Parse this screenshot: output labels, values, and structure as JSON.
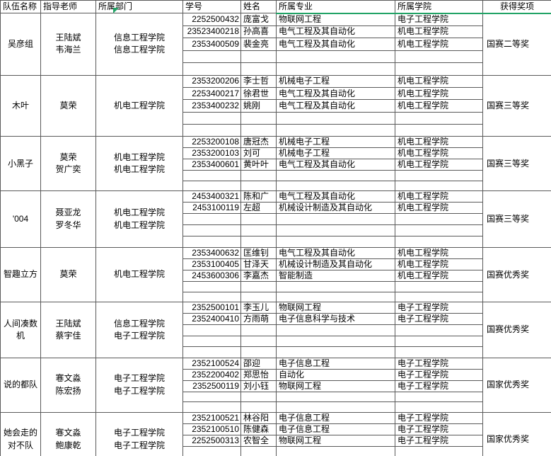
{
  "header": {
    "columns": [
      "队伍名称",
      "指导老师",
      "所属部门",
      "学号",
      "姓名",
      "所属专业",
      "所属学院",
      "获得奖项"
    ]
  },
  "colors": {
    "selection_green": "#21a366",
    "grid_border": "#5a5a5a"
  },
  "teams": [
    {
      "name": "吴彦组",
      "advisors": "王陆斌\n韦海兰",
      "department": "信息工程学院\n信息工程学院",
      "award": "国赛二等奖",
      "students": [
        {
          "id": "2252500432",
          "name": "庞富戈",
          "major": "物联网工程",
          "college": "电子工程学院"
        },
        {
          "id": "23523400218",
          "name": "孙高喜",
          "major": "电气工程及其自动化",
          "college": "机电工程学院"
        },
        {
          "id": "2353400509",
          "name": "裴金亮",
          "major": "电气工程及其自动化",
          "college": "机电工程学院"
        }
      ]
    },
    {
      "name": "木叶",
      "advisors": "莫荣",
      "department": "机电工程学院",
      "award": "国赛三等奖",
      "students": [
        {
          "id": "2353200206",
          "name": "李士哲",
          "major": "机械电子工程",
          "college": "机电工程学院"
        },
        {
          "id": "2253400217",
          "name": "徐君世",
          "major": "电气工程及其自动化",
          "college": "机电工程学院"
        },
        {
          "id": "2353400232",
          "name": "姚刚",
          "major": "电气工程及其自动化",
          "college": "机电工程学院"
        }
      ]
    },
    {
      "name": "小黑子",
      "advisors": "莫荣\n贺广奕",
      "department": "机电工程学院\n机电工程学院",
      "award": "国赛三等奖",
      "students": [
        {
          "id": "2253200108",
          "name": "唐冠杰",
          "major": "机械电子工程",
          "college": "机电工程学院"
        },
        {
          "id": "2353200103",
          "name": "刘可",
          "major": "机械电子工程",
          "college": "机电工程学院"
        },
        {
          "id": "2353400601",
          "name": "黄叶叶",
          "major": "电气工程及其自动化",
          "college": "机电工程学院"
        }
      ]
    },
    {
      "name": "'004",
      "advisors": "聂亚龙\n罗冬华",
      "department": "机电工程学院\n机电工程学院",
      "award": "国赛三等奖",
      "students": [
        {
          "id": "2453400321",
          "name": "陈和广",
          "major": "电气工程及其自动化",
          "college": "机电工程学院"
        },
        {
          "id": "2453100119",
          "name": "左超",
          "major": "机械设计制造及其自动化",
          "college": "机电工程学院"
        }
      ]
    },
    {
      "name": "智趣立方",
      "advisors": "莫荣",
      "department": "机电工程学院",
      "award": "国赛优秀奖",
      "students": [
        {
          "id": "2353400632",
          "name": "匡维钊",
          "major": "电气工程及其自动化",
          "college": "机电工程学院"
        },
        {
          "id": "2353100405",
          "name": "甘泽天",
          "major": "机械设计制造及其自动化",
          "college": "机电工程学院"
        },
        {
          "id": "2453600306",
          "name": "李嘉杰",
          "major": "智能制造",
          "college": "机电工程学院"
        }
      ]
    },
    {
      "name": "人间凑数机",
      "advisors": "王陆斌\n蔡宇佳",
      "department": "信息工程学院\n电子工程学院",
      "award": "国赛优秀奖",
      "students": [
        {
          "id": "2352500101",
          "name": "李玉儿",
          "major": "物联网工程",
          "college": "电子工程学院"
        },
        {
          "id": "2352400410",
          "name": "方雨萌",
          "major": "电子信息科学与技术",
          "college": "电子工程学院"
        }
      ]
    },
    {
      "name": "说的都队",
      "advisors": "寋文淼\n陈宏扬",
      "department": "电子工程学院\n电子工程学院",
      "award": "国家优秀奖",
      "students": [
        {
          "id": "2352100524",
          "name": "邵迎",
          "major": "电子信息工程",
          "college": "电子工程学院"
        },
        {
          "id": "2352200402",
          "name": "郑思怡",
          "major": "自动化",
          "college": "电子工程学院"
        },
        {
          "id": "2352500119",
          "name": "刘小钰",
          "major": "物联网工程",
          "college": "电子工程学院"
        }
      ]
    },
    {
      "name": "她会走的对不队",
      "advisors": "寋文淼\n鲍康乾",
      "department": "电子工程学院\n电子工程学院",
      "award": "国家优秀奖",
      "students": [
        {
          "id": "2352100521",
          "name": "林谷阳",
          "major": "电子信息工程",
          "college": "电子工程学院"
        },
        {
          "id": "2352100510",
          "name": "陈健森",
          "major": "电子信息工程",
          "college": "电子工程学院"
        },
        {
          "id": "2252500313",
          "name": "农智全",
          "major": "物联网工程",
          "college": "电子工程学院"
        }
      ]
    }
  ]
}
